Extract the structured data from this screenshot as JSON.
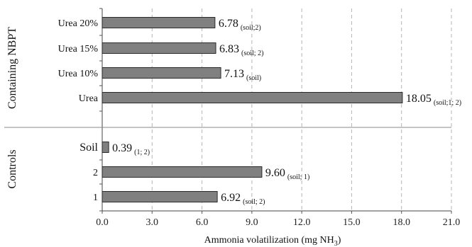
{
  "chart_data": {
    "type": "bar",
    "orientation": "horizontal",
    "xlabel": "Ammonia volatilization (mg NH",
    "xlabel_sub": "3",
    "xlabel_end": ")",
    "xlim": [
      0,
      21
    ],
    "xticks": [
      "0.0",
      "3.0",
      "6.0",
      "9.0",
      "12.0",
      "15.0",
      "18.0",
      "21.0"
    ],
    "grid": "vertical dashed",
    "bar_color": "#808080",
    "groups": [
      {
        "name": "Containing NBPT",
        "bars": [
          {
            "category": "Urea 20%",
            "value": 6.78,
            "label": "6.78",
            "note": "(soil;2)"
          },
          {
            "category": "Urea 15%",
            "value": 6.83,
            "label": "6.83",
            "note": "(soil; 2)"
          },
          {
            "category": "Urea 10%",
            "value": 7.13,
            "label": "7.13",
            "note": "(soil)"
          },
          {
            "category": "Urea",
            "value": 18.05,
            "label": "18.05",
            "note": "(soil;1; 2)"
          }
        ]
      },
      {
        "name": "Controls",
        "bars": [
          {
            "category": "Soil",
            "value": 0.39,
            "label": "0.39",
            "note": "(1; 2)"
          },
          {
            "category": "2",
            "value": 9.6,
            "label": "9.60",
            "note": "(soil; 1)"
          },
          {
            "category": "1",
            "value": 6.92,
            "label": "6.92",
            "note": "(soil; 2)"
          }
        ]
      }
    ]
  }
}
